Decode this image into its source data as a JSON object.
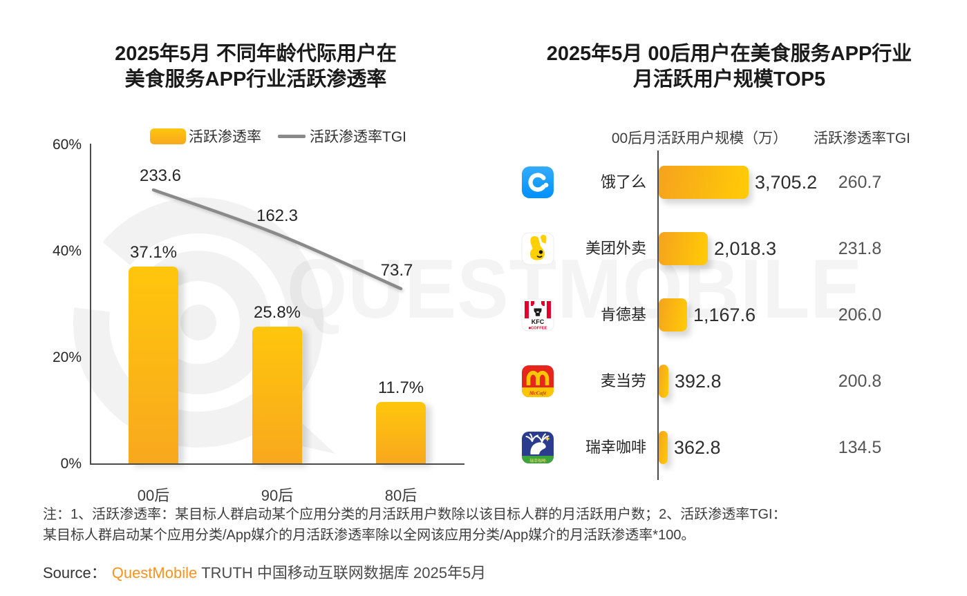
{
  "watermark": {
    "text": "QUESTMOBILE"
  },
  "left_chart": {
    "title_line1": "2025年5月 不同年龄代际用户在",
    "title_line2": "美食服务APP行业活跃渗透率",
    "legend": {
      "bar_label": "活跃渗透率",
      "line_label": "活跃渗透率TGI"
    }
  },
  "right_chart": {
    "title_line1": "2025年5月 00后用户在美食服务APP行业",
    "title_line2": "月活跃用户规模TOP5",
    "col_mau_header": "00后月活跃用户规模（万）",
    "col_tgi_header": "活跃渗透率TGI"
  },
  "chart_data": [
    {
      "type": "bar",
      "title": "2025年5月 不同年龄代际用户在美食服务APP行业活跃渗透率",
      "categories": [
        "00后",
        "90后",
        "80后"
      ],
      "series": [
        {
          "name": "活跃渗透率",
          "chart": "bar",
          "unit": "%",
          "values": [
            37.1,
            25.8,
            11.7
          ],
          "labels": [
            "37.1%",
            "25.8%",
            "11.7%"
          ]
        },
        {
          "name": "活跃渗透率TGI",
          "chart": "line",
          "values": [
            233.6,
            162.3,
            73.7
          ],
          "labels": [
            "233.6",
            "162.3",
            "73.7"
          ]
        }
      ],
      "y_axis": {
        "min": 0,
        "max": 60,
        "ticks": [
          {
            "label": "0%",
            "value": 0
          },
          {
            "label": "20%",
            "value": 20
          },
          {
            "label": "40%",
            "value": 40
          },
          {
            "label": "60%",
            "value": 60
          }
        ]
      },
      "grid": false,
      "legend_position": "top"
    },
    {
      "type": "bar",
      "orientation": "horizontal",
      "title": "2025年5月 00后用户在美食服务APP行业月活跃用户规模TOP5",
      "value_unit": "万",
      "columns": [
        "00后月活跃用户规模（万）",
        "活跃渗透率TGI"
      ],
      "rows": [
        {
          "app": "饿了么",
          "icon": "eleme-icon",
          "mau_label": "3,705.2",
          "mau_value": 3705.2,
          "tgi_label": "260.7",
          "tgi_value": 260.7
        },
        {
          "app": "美团外卖",
          "icon": "meituan-icon",
          "mau_label": "2,018.3",
          "mau_value": 2018.3,
          "tgi_label": "231.8",
          "tgi_value": 231.8
        },
        {
          "app": "肯德基",
          "icon": "kfc-icon",
          "mau_label": "1,167.6",
          "mau_value": 1167.6,
          "tgi_label": "206.0",
          "tgi_value": 206.0
        },
        {
          "app": "麦当劳",
          "icon": "mcdonalds-icon",
          "mau_label": "392.8",
          "mau_value": 392.8,
          "tgi_label": "200.8",
          "tgi_value": 200.8
        },
        {
          "app": "瑞幸咖啡",
          "icon": "luckin-icon",
          "mau_label": "362.8",
          "mau_value": 362.8,
          "tgi_label": "134.5",
          "tgi_value": 134.5
        }
      ]
    }
  ],
  "notes": {
    "line1": "注：1、活跃渗透率：某目标人群启动某个应用分类的月活跃用户数除以该目标人群的月活跃用户数；2、活跃渗透率TGI：",
    "line2": "某目标人群启动某个应用分类/App媒介的月活跃渗透率除以全网该应用分类/App媒介的月活跃渗透率*100。"
  },
  "source": {
    "prefix": "Source：",
    "brand": "QuestMobile",
    "suffix": "TRUTH 中国移动互联网数据库 2025年5月"
  },
  "colors": {
    "bar_yellow": "#FFC60C",
    "bar_orange": "#F8A81E",
    "line_gray": "#8A8A8A",
    "axis_gray": "#4a4a4a",
    "brand_orange": "#F7941D"
  }
}
